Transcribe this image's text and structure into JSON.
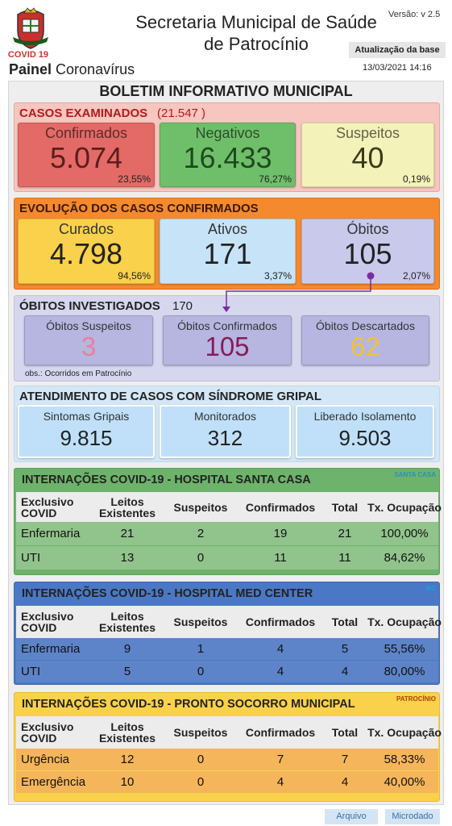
{
  "header": {
    "logo_label": "COVID 19",
    "title_line1": "Secretaria Municipal de Saúde",
    "title_line2": "de Patrocínio",
    "painel": "Painel",
    "subtitle": "Coronavírus",
    "version": "Versão: v 2.5",
    "update_label": "Atualização da base",
    "update_date": "13/03/2021 14:16"
  },
  "bulletin_title": "BOLETIM INFORMATIVO MUNICIPAL",
  "casos": {
    "title": "CASOS EXAMINADOS",
    "total": "(21.547 )",
    "cards": [
      {
        "label": "Confirmados",
        "value": "5.074",
        "pct": "23,55%"
      },
      {
        "label": "Negativos",
        "value": "16.433",
        "pct": "76,27%"
      },
      {
        "label": "Suspeitos",
        "value": "40",
        "pct": "0,19%"
      }
    ]
  },
  "evolucao": {
    "title": "EVOLUÇÃO DOS CASOS CONFIRMADOS",
    "cards": [
      {
        "label": "Curados",
        "value": "4.798",
        "pct": "94,56%"
      },
      {
        "label": "Ativos",
        "value": "171",
        "pct": "3,37%"
      },
      {
        "label": "Óbitos",
        "value": "105",
        "pct": "2,07%"
      }
    ]
  },
  "obitos": {
    "title": "ÓBITOS INVESTIGADOS",
    "total": "170",
    "cards": [
      {
        "label": "Óbitos Suspeitos",
        "value": "3"
      },
      {
        "label": "Óbitos Confirmados",
        "value": "105"
      },
      {
        "label": "Óbitos Descartados",
        "value": "62"
      }
    ],
    "note": "obs.: Ocorridos em Patrocínio"
  },
  "atendimento": {
    "title": "ATENDIMENTO DE CASOS COM SÍNDROME GRIPAL",
    "cards": [
      {
        "label": "Sintomas Gripais",
        "value": "9.815"
      },
      {
        "label": "Monitorados",
        "value": "312"
      },
      {
        "label": "Liberado Isolamento",
        "value": "9.503"
      }
    ]
  },
  "hospitals": [
    {
      "title": "INTERNAÇÕES COVID-19 - HOSPITAL SANTA CASA",
      "logo_text": "SANTA CASA",
      "headers": [
        "Exclusivo COVID",
        "Leitos Existentes",
        "Suspeitos",
        "Confirmados",
        "Total",
        "Tx. Ocupação"
      ],
      "rows": [
        [
          "Enfermaria",
          "21",
          "2",
          "19",
          "21",
          "100,00%"
        ],
        [
          "UTI",
          "13",
          "0",
          "11",
          "11",
          "84,62%"
        ]
      ]
    },
    {
      "title": "INTERNAÇÕES COVID-19 - HOSPITAL MED CENTER",
      "logo_text": "MC",
      "headers": [
        "Exclusivo COVID",
        "Leitos Existentes",
        "Suspeitos",
        "Confirmados",
        "Total",
        "Tx. Ocupação"
      ],
      "rows": [
        [
          "Enfermaria",
          "9",
          "1",
          "4",
          "5",
          "55,56%"
        ],
        [
          "UTI",
          "5",
          "0",
          "4",
          "4",
          "80,00%"
        ]
      ]
    },
    {
      "title": "INTERNAÇÕES COVID-19 - PRONTO SOCORRO MUNICIPAL",
      "logo_text": "PATROCÍNIO",
      "headers": [
        "Exclusivo COVID",
        "Leitos Existentes",
        "Suspeitos",
        "Confirmados",
        "Total",
        "Tx. Ocupação"
      ],
      "rows": [
        [
          "Urgência",
          "12",
          "0",
          "7",
          "7",
          "58,33%"
        ],
        [
          "Emergência",
          "10",
          "0",
          "4",
          "4",
          "40,00%"
        ]
      ]
    }
  ],
  "buttons": [
    "Arquivo",
    "Microdado"
  ]
}
